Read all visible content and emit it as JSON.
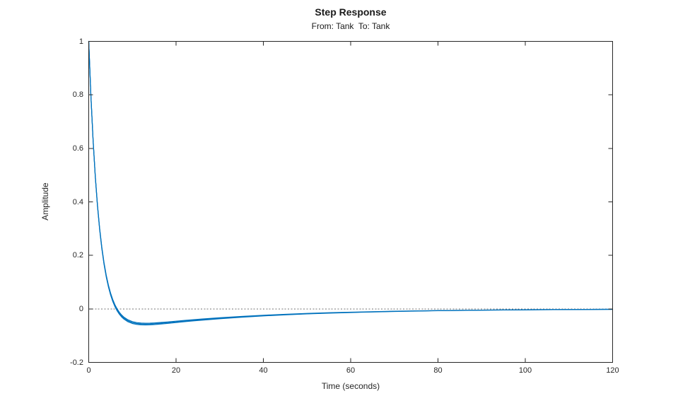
{
  "chart_data": {
    "type": "line",
    "title": "Step Response",
    "subtitle": "From: Tank  To: Tank",
    "xlabel": "Time (seconds)",
    "ylabel": "Amplitude",
    "xlim": [
      0,
      120
    ],
    "ylim": [
      -0.2,
      1
    ],
    "x_ticks": [
      0,
      20,
      40,
      60,
      80,
      100,
      120
    ],
    "x_tick_labels": [
      "0",
      "20",
      "40",
      "60",
      "80",
      "100",
      "120"
    ],
    "y_ticks": [
      -0.2,
      0,
      0.2,
      0.4,
      0.6,
      0.8,
      1
    ],
    "y_tick_labels": [
      "-0.2",
      "0",
      "0.2",
      "0.4",
      "0.6",
      "0.8",
      "1"
    ],
    "grid": false,
    "box": true,
    "legend": "none",
    "line_color": "#0072BD",
    "axis_color": "#262626",
    "baseline": {
      "y": 0,
      "style": "dotted",
      "color": "#737373"
    },
    "x": [
      0,
      0.5,
      1,
      1.5,
      2,
      2.5,
      3,
      3.5,
      4,
      4.5,
      5,
      5.5,
      6,
      6.5,
      7,
      7.5,
      8,
      9,
      10,
      11,
      12,
      13,
      14,
      15,
      16,
      18,
      20,
      22,
      24,
      26,
      28,
      30,
      35,
      40,
      45,
      50,
      55,
      60,
      70,
      80,
      90,
      100,
      110,
      120
    ],
    "series": [
      {
        "name": "curve-1",
        "values": [
          1.0,
          0.7956,
          0.63,
          0.4957,
          0.387,
          0.299,
          0.2278,
          0.1702,
          0.1237,
          0.0862,
          0.0559,
          0.0316,
          0.0121,
          -0.0035,
          -0.016,
          -0.0259,
          -0.0337,
          -0.0446,
          -0.0511,
          -0.0546,
          -0.0563,
          -0.0567,
          -0.0564,
          -0.0555,
          -0.0543,
          -0.0515,
          -0.0485,
          -0.0455,
          -0.0426,
          -0.0399,
          -0.0374,
          -0.0349,
          -0.0296,
          -0.025,
          -0.0212,
          -0.0179,
          -0.0152,
          -0.0129,
          -0.0092,
          -0.0066,
          -0.0047,
          -0.0034,
          -0.0024,
          -0.0017
        ]
      },
      {
        "name": "curve-2",
        "values": [
          1.0,
          0.7947,
          0.6285,
          0.4936,
          0.3845,
          0.2962,
          0.2247,
          0.1669,
          0.1203,
          0.0827,
          0.0523,
          0.0279,
          0.0084,
          -0.0072,
          -0.0197,
          -0.0296,
          -0.0374,
          -0.0482,
          -0.0546,
          -0.058,
          -0.0596,
          -0.0599,
          -0.0595,
          -0.0585,
          -0.0572,
          -0.0542,
          -0.0511,
          -0.0479,
          -0.0449,
          -0.042,
          -0.0394,
          -0.0367,
          -0.0312,
          -0.0263,
          -0.0223,
          -0.0188,
          -0.016,
          -0.0136,
          -0.0097,
          -0.0069,
          -0.0049,
          -0.0036,
          -0.0025,
          -0.0018
        ]
      },
      {
        "name": "curve-3",
        "values": [
          1.0,
          0.7965,
          0.6315,
          0.4978,
          0.3895,
          0.3018,
          0.2309,
          0.1735,
          0.1271,
          0.0897,
          0.0595,
          0.0353,
          0.0158,
          0.0002,
          -0.0123,
          -0.0222,
          -0.0301,
          -0.041,
          -0.0476,
          -0.0512,
          -0.053,
          -0.0535,
          -0.0533,
          -0.0525,
          -0.0514,
          -0.0488,
          -0.0459,
          -0.0431,
          -0.0404,
          -0.0378,
          -0.0354,
          -0.0331,
          -0.028,
          -0.0237,
          -0.0201,
          -0.017,
          -0.0144,
          -0.0122,
          -0.0087,
          -0.0063,
          -0.0045,
          -0.003,
          -0.0022,
          -0.0015
        ]
      }
    ]
  }
}
